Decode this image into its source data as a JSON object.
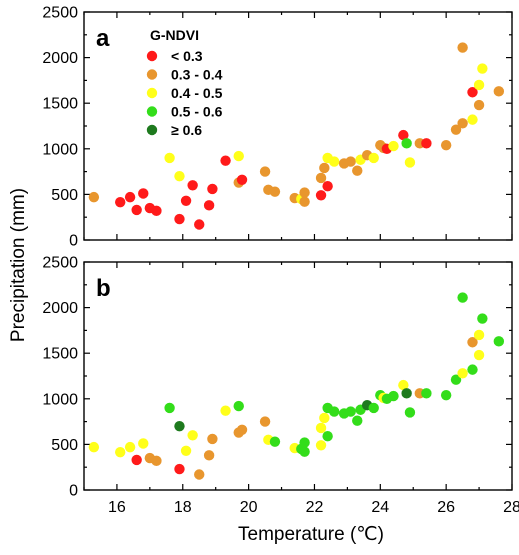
{
  "chart_data": {
    "type": "scatter",
    "xlabel": "Temperature (℃)",
    "ylabel": "Precipitation (mm)",
    "xlim": [
      15,
      28
    ],
    "ylim": [
      0,
      2500
    ],
    "x_ticks": [
      "16",
      "18",
      "20",
      "22",
      "24",
      "26",
      "28"
    ],
    "y_ticks": [
      "0",
      "500",
      "1000",
      "1500",
      "2000",
      "2500"
    ],
    "legend": {
      "title": "G-NDVI",
      "placement": "top-left",
      "entries": [
        {
          "label": "< 0.3",
          "color": "#ff1a1a"
        },
        {
          "label": "0.3 - 0.4",
          "color": "#e8962e"
        },
        {
          "label": "0.4 - 0.5",
          "color": "#ffff1a"
        },
        {
          "label": "0.5 - 0.6",
          "color": "#33dd1a"
        },
        {
          "label": "≥ 0.6",
          "color": "#1e7a1e"
        }
      ]
    },
    "panels": [
      {
        "label": "a",
        "points": [
          {
            "x": 15.3,
            "y": 470,
            "c": 1
          },
          {
            "x": 16.1,
            "y": 415,
            "c": 0
          },
          {
            "x": 16.4,
            "y": 470,
            "c": 0
          },
          {
            "x": 16.6,
            "y": 330,
            "c": 0
          },
          {
            "x": 16.8,
            "y": 510,
            "c": 0
          },
          {
            "x": 17.0,
            "y": 350,
            "c": 0
          },
          {
            "x": 17.2,
            "y": 320,
            "c": 0
          },
          {
            "x": 17.6,
            "y": 900,
            "c": 2
          },
          {
            "x": 17.9,
            "y": 230,
            "c": 0
          },
          {
            "x": 17.9,
            "y": 700,
            "c": 2
          },
          {
            "x": 18.1,
            "y": 430,
            "c": 0
          },
          {
            "x": 18.3,
            "y": 600,
            "c": 0
          },
          {
            "x": 18.5,
            "y": 170,
            "c": 0
          },
          {
            "x": 18.8,
            "y": 380,
            "c": 0
          },
          {
            "x": 18.9,
            "y": 560,
            "c": 0
          },
          {
            "x": 19.3,
            "y": 870,
            "c": 0
          },
          {
            "x": 19.7,
            "y": 920,
            "c": 2
          },
          {
            "x": 19.7,
            "y": 630,
            "c": 1
          },
          {
            "x": 19.8,
            "y": 660,
            "c": 0
          },
          {
            "x": 20.5,
            "y": 750,
            "c": 1
          },
          {
            "x": 20.6,
            "y": 550,
            "c": 1
          },
          {
            "x": 20.8,
            "y": 530,
            "c": 1
          },
          {
            "x": 21.4,
            "y": 460,
            "c": 1
          },
          {
            "x": 21.6,
            "y": 450,
            "c": 2
          },
          {
            "x": 21.7,
            "y": 420,
            "c": 1
          },
          {
            "x": 21.7,
            "y": 520,
            "c": 1
          },
          {
            "x": 22.2,
            "y": 490,
            "c": 0
          },
          {
            "x": 22.2,
            "y": 680,
            "c": 1
          },
          {
            "x": 22.3,
            "y": 790,
            "c": 1
          },
          {
            "x": 22.4,
            "y": 590,
            "c": 0
          },
          {
            "x": 22.4,
            "y": 900,
            "c": 2
          },
          {
            "x": 22.6,
            "y": 860,
            "c": 2
          },
          {
            "x": 22.9,
            "y": 840,
            "c": 1
          },
          {
            "x": 23.1,
            "y": 860,
            "c": 1
          },
          {
            "x": 23.3,
            "y": 760,
            "c": 1
          },
          {
            "x": 23.4,
            "y": 880,
            "c": 2
          },
          {
            "x": 23.6,
            "y": 930,
            "c": 1
          },
          {
            "x": 23.8,
            "y": 900,
            "c": 2
          },
          {
            "x": 24.0,
            "y": 1040,
            "c": 1
          },
          {
            "x": 24.1,
            "y": 1010,
            "c": 1
          },
          {
            "x": 24.2,
            "y": 1000,
            "c": 0
          },
          {
            "x": 24.4,
            "y": 1030,
            "c": 2
          },
          {
            "x": 24.7,
            "y": 1150,
            "c": 0
          },
          {
            "x": 24.8,
            "y": 1060,
            "c": 3
          },
          {
            "x": 24.9,
            "y": 850,
            "c": 2
          },
          {
            "x": 25.2,
            "y": 1060,
            "c": 1
          },
          {
            "x": 25.4,
            "y": 1060,
            "c": 0
          },
          {
            "x": 26.0,
            "y": 1040,
            "c": 1
          },
          {
            "x": 26.3,
            "y": 1210,
            "c": 1
          },
          {
            "x": 26.5,
            "y": 2110,
            "c": 1
          },
          {
            "x": 26.5,
            "y": 1280,
            "c": 1
          },
          {
            "x": 26.8,
            "y": 1320,
            "c": 2
          },
          {
            "x": 26.8,
            "y": 1620,
            "c": 0
          },
          {
            "x": 27.0,
            "y": 1480,
            "c": 1
          },
          {
            "x": 27.0,
            "y": 1700,
            "c": 2
          },
          {
            "x": 27.1,
            "y": 1880,
            "c": 2
          },
          {
            "x": 27.6,
            "y": 1630,
            "c": 1
          }
        ]
      },
      {
        "label": "b",
        "points": [
          {
            "x": 15.3,
            "y": 470,
            "c": 2
          },
          {
            "x": 16.1,
            "y": 415,
            "c": 2
          },
          {
            "x": 16.4,
            "y": 470,
            "c": 2
          },
          {
            "x": 16.6,
            "y": 330,
            "c": 0
          },
          {
            "x": 16.8,
            "y": 510,
            "c": 2
          },
          {
            "x": 17.0,
            "y": 350,
            "c": 1
          },
          {
            "x": 17.2,
            "y": 320,
            "c": 1
          },
          {
            "x": 17.6,
            "y": 900,
            "c": 3
          },
          {
            "x": 17.9,
            "y": 230,
            "c": 0
          },
          {
            "x": 17.9,
            "y": 700,
            "c": 4
          },
          {
            "x": 18.1,
            "y": 430,
            "c": 2
          },
          {
            "x": 18.3,
            "y": 600,
            "c": 2
          },
          {
            "x": 18.5,
            "y": 170,
            "c": 1
          },
          {
            "x": 18.8,
            "y": 380,
            "c": 1
          },
          {
            "x": 18.9,
            "y": 560,
            "c": 1
          },
          {
            "x": 19.3,
            "y": 870,
            "c": 2
          },
          {
            "x": 19.7,
            "y": 920,
            "c": 3
          },
          {
            "x": 19.7,
            "y": 630,
            "c": 1
          },
          {
            "x": 19.8,
            "y": 660,
            "c": 1
          },
          {
            "x": 20.5,
            "y": 750,
            "c": 1
          },
          {
            "x": 20.6,
            "y": 550,
            "c": 2
          },
          {
            "x": 20.8,
            "y": 530,
            "c": 3
          },
          {
            "x": 21.4,
            "y": 460,
            "c": 2
          },
          {
            "x": 21.6,
            "y": 450,
            "c": 3
          },
          {
            "x": 21.7,
            "y": 420,
            "c": 3
          },
          {
            "x": 21.7,
            "y": 520,
            "c": 3
          },
          {
            "x": 22.2,
            "y": 490,
            "c": 2
          },
          {
            "x": 22.2,
            "y": 680,
            "c": 2
          },
          {
            "x": 22.3,
            "y": 790,
            "c": 2
          },
          {
            "x": 22.4,
            "y": 590,
            "c": 3
          },
          {
            "x": 22.4,
            "y": 900,
            "c": 3
          },
          {
            "x": 22.6,
            "y": 860,
            "c": 3
          },
          {
            "x": 22.9,
            "y": 840,
            "c": 3
          },
          {
            "x": 23.1,
            "y": 860,
            "c": 3
          },
          {
            "x": 23.3,
            "y": 760,
            "c": 3
          },
          {
            "x": 23.4,
            "y": 880,
            "c": 3
          },
          {
            "x": 23.6,
            "y": 930,
            "c": 4
          },
          {
            "x": 23.8,
            "y": 900,
            "c": 3
          },
          {
            "x": 24.0,
            "y": 1040,
            "c": 3
          },
          {
            "x": 24.1,
            "y": 1010,
            "c": 2
          },
          {
            "x": 24.2,
            "y": 1000,
            "c": 3
          },
          {
            "x": 24.4,
            "y": 1030,
            "c": 3
          },
          {
            "x": 24.7,
            "y": 1150,
            "c": 2
          },
          {
            "x": 24.8,
            "y": 1060,
            "c": 4
          },
          {
            "x": 24.9,
            "y": 850,
            "c": 3
          },
          {
            "x": 25.2,
            "y": 1060,
            "c": 1
          },
          {
            "x": 25.4,
            "y": 1060,
            "c": 3
          },
          {
            "x": 26.0,
            "y": 1040,
            "c": 3
          },
          {
            "x": 26.3,
            "y": 1210,
            "c": 3
          },
          {
            "x": 26.5,
            "y": 2110,
            "c": 3
          },
          {
            "x": 26.5,
            "y": 1280,
            "c": 2
          },
          {
            "x": 26.8,
            "y": 1320,
            "c": 3
          },
          {
            "x": 26.8,
            "y": 1620,
            "c": 1
          },
          {
            "x": 27.0,
            "y": 1480,
            "c": 2
          },
          {
            "x": 27.0,
            "y": 1700,
            "c": 2
          },
          {
            "x": 27.1,
            "y": 1880,
            "c": 3
          },
          {
            "x": 27.6,
            "y": 1630,
            "c": 3
          }
        ]
      }
    ]
  }
}
